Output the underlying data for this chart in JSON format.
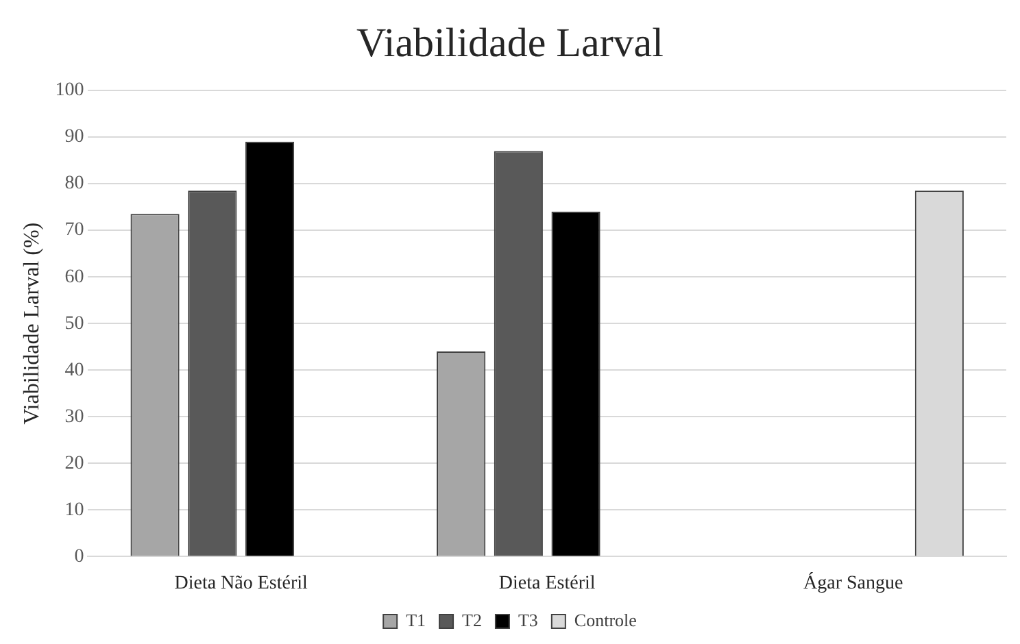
{
  "chart_data": {
    "type": "bar",
    "title": "Viabilidade Larval",
    "ylabel": "Viabilidade Larval (%)",
    "categories": [
      "Dieta Não Estéril",
      "Dieta Estéril",
      "Ágar Sangue"
    ],
    "series": [
      {
        "name": "T1",
        "color": "#a6a6a6",
        "values": [
          73.5,
          44,
          null
        ]
      },
      {
        "name": "T2",
        "color": "#595959",
        "values": [
          78.5,
          87,
          null
        ]
      },
      {
        "name": "T3",
        "color": "#000000",
        "values": [
          89,
          74,
          null
        ]
      },
      {
        "name": "Controle",
        "color": "#d9d9d9",
        "values": [
          null,
          null,
          78.5
        ]
      }
    ],
    "ylim": [
      0,
      100
    ],
    "yticks": [
      0,
      10,
      20,
      30,
      40,
      50,
      60,
      70,
      80,
      90,
      100
    ],
    "grid": "y",
    "legend": "bottom"
  }
}
